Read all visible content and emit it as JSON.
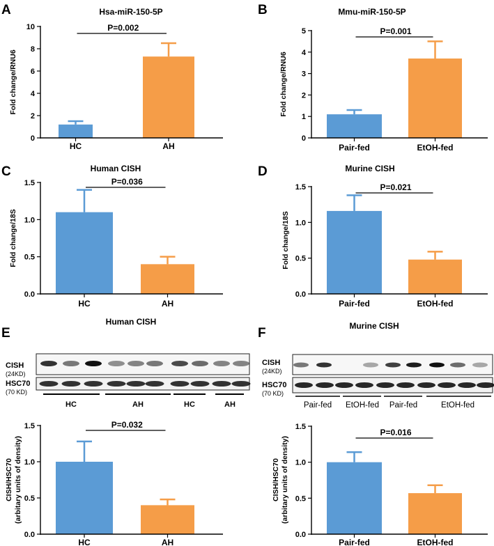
{
  "panels": [
    {
      "letter": "A",
      "title": "Hsa-miR-150-5P"
    },
    {
      "letter": "B",
      "title": "Mmu-miR-150-5P"
    },
    {
      "letter": "C",
      "title": "Human CISH"
    },
    {
      "letter": "D",
      "title": "Murine CISH"
    },
    {
      "letter": "E",
      "title": "Human CISH"
    },
    {
      "letter": "F",
      "title": "Murine CISH"
    }
  ],
  "blots": [
    {
      "panel": "E",
      "top_protein": {
        "name": "CISH",
        "kd": "(24KD)"
      },
      "bottom_protein": {
        "name": "HSC70",
        "kd": "(70 KD)"
      },
      "top_lane_intensity": [
        0.85,
        0.55,
        1.0,
        0.45,
        0.5,
        0.55,
        0.75,
        0.6,
        0.5,
        0.5
      ],
      "bottom_lane_intensity": [
        0.85,
        0.85,
        0.85,
        0.85,
        0.85,
        0.85,
        0.85,
        0.85,
        0.85,
        0.85
      ],
      "groups": [
        "HC",
        "AH",
        "HC",
        "AH"
      ]
    },
    {
      "panel": "F",
      "top_protein": {
        "name": "CISH",
        "kd": "(24KD)"
      },
      "bottom_protein": {
        "name": "HSC70",
        "kd": "(70 KD)"
      },
      "top_lane_intensity": [
        0.55,
        0.85,
        0.0,
        0.35,
        0.8,
        0.95,
        1.0,
        0.6,
        0.35,
        0.8
      ],
      "bottom_lane_intensity": [
        0.9,
        0.9,
        0.9,
        0.9,
        0.9,
        0.9,
        0.9,
        0.9,
        0.9,
        0.9
      ],
      "groups": [
        "Pair-fed",
        "EtOH-fed",
        "Pair-fed",
        "EtOH-fed"
      ]
    }
  ],
  "colors": {
    "blue": "#5b9bd5",
    "orange": "#f59d48"
  },
  "chart_data": [
    {
      "panel": "A",
      "type": "bar",
      "title": "Hsa-miR-150-5P",
      "categories": [
        "HC",
        "AH"
      ],
      "values": [
        1.2,
        7.3
      ],
      "errors": [
        0.3,
        1.2
      ],
      "ylabel": "Fold change/RNU6",
      "ylim": [
        0,
        10
      ],
      "yticks": [
        0,
        2,
        4,
        6,
        8,
        10
      ],
      "ytick_labels": [
        "0",
        "2",
        "4",
        "6",
        "8",
        "10"
      ],
      "annotation": "P=0.002",
      "grid": false
    },
    {
      "panel": "B",
      "type": "bar",
      "title": "Mmu-miR-150-5P",
      "categories": [
        "Pair-fed",
        "EtOH-fed"
      ],
      "values": [
        1.1,
        3.7
      ],
      "errors": [
        0.2,
        0.8
      ],
      "ylabel": "Fold change/RNU6",
      "ylim": [
        0,
        5
      ],
      "yticks": [
        0,
        1,
        2,
        3,
        4,
        5
      ],
      "ytick_labels": [
        "0",
        "1",
        "2",
        "3",
        "4",
        "5"
      ],
      "annotation": "P=0.001",
      "grid": false
    },
    {
      "panel": "C",
      "type": "bar",
      "title": "Human CISH",
      "categories": [
        "HC",
        "AH"
      ],
      "values": [
        1.1,
        0.4
      ],
      "errors": [
        0.3,
        0.1
      ],
      "ylabel": "Fold change/18S",
      "ylim": [
        0,
        1.5
      ],
      "yticks": [
        0,
        0.5,
        1.0,
        1.5
      ],
      "ytick_labels": [
        "0.0",
        "0.5",
        "1.0",
        "1.5"
      ],
      "annotation": "P=0.036",
      "grid": false
    },
    {
      "panel": "D",
      "type": "bar",
      "title": "Murine CISH",
      "categories": [
        "Pair-fed",
        "EtOH-fed"
      ],
      "values": [
        1.16,
        0.48
      ],
      "errors": [
        0.22,
        0.11
      ],
      "ylabel": "Fold change/18S",
      "ylim": [
        0,
        1.5
      ],
      "yticks": [
        0,
        0.5,
        1.0,
        1.5
      ],
      "ytick_labels": [
        "0.0",
        "0.5",
        "1.0",
        "1.5"
      ],
      "annotation": "P=0.021",
      "grid": false
    },
    {
      "panel": "E",
      "type": "bar",
      "title": "Human CISH",
      "categories": [
        "HC",
        "AH"
      ],
      "values": [
        1.0,
        0.4
      ],
      "errors": [
        0.28,
        0.08
      ],
      "ylabel": [
        "CISH/HSC70",
        "(arbitary units of density)"
      ],
      "ylim": [
        0,
        1.5
      ],
      "yticks": [
        0,
        0.5,
        1.0,
        1.5
      ],
      "ytick_labels": [
        "0.0",
        "0.5",
        "1.0",
        "1.5"
      ],
      "annotation": "P=0.032",
      "grid": false
    },
    {
      "panel": "F",
      "type": "bar",
      "title": "Murine CISH",
      "categories": [
        "Pair-fed",
        "EtOH-fed"
      ],
      "values": [
        1.0,
        0.57
      ],
      "errors": [
        0.14,
        0.11
      ],
      "ylabel": [
        "CISH/HSC70",
        "(arbitary units of density)"
      ],
      "ylim": [
        0,
        1.5
      ],
      "yticks": [
        0,
        0.5,
        1.0,
        1.5
      ],
      "ytick_labels": [
        "0.0",
        "0.5",
        "1.0",
        "1.5"
      ],
      "annotation": "P=0.016",
      "grid": false
    }
  ]
}
